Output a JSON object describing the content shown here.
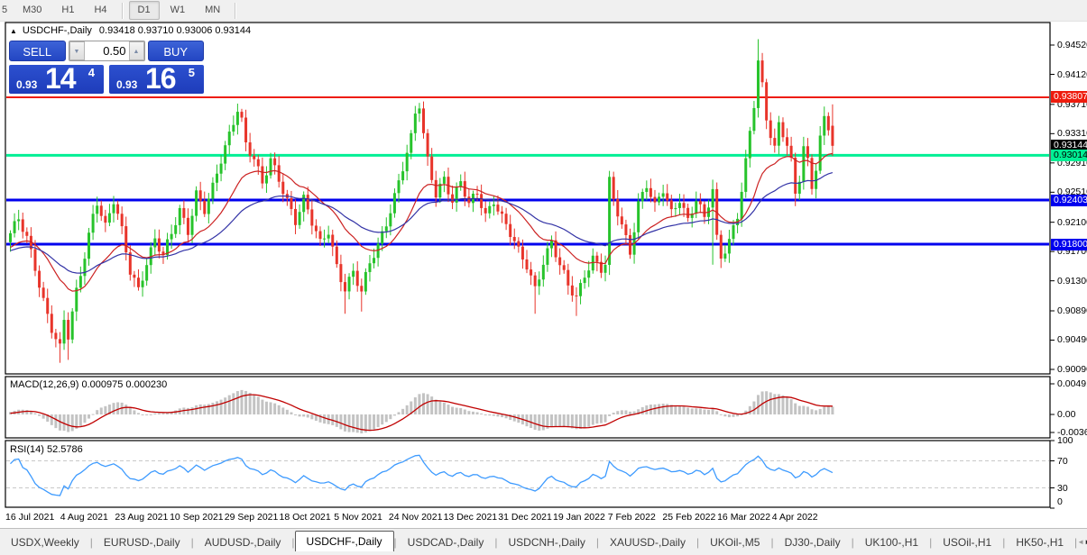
{
  "toolbar": {
    "timeframes": [
      "5",
      "M30",
      "H1",
      "H4",
      "D1",
      "W1",
      "MN"
    ],
    "active": "D1"
  },
  "chart_header": {
    "collapse_icon": "▲",
    "symbol": "USDCHF-,Daily",
    "ohlc": "0.93418 0.93710 0.93006 0.93144"
  },
  "trade_panel": {
    "sell_label": "SELL",
    "buy_label": "BUY",
    "volume": "0.50",
    "volume_down_icon": "▼",
    "volume_up_icon": "▲",
    "sell_quote": {
      "prefix": "0.93",
      "big": "14",
      "sup": "4"
    },
    "buy_quote": {
      "prefix": "0.93",
      "big": "16",
      "sup": "5"
    }
  },
  "price_axis": {
    "ticks": [
      "0.94520",
      "0.94120",
      "0.93710",
      "0.93310",
      "0.92910",
      "0.92510",
      "0.92100",
      "0.91700",
      "0.91300",
      "0.90890",
      "0.90490",
      "0.90090"
    ],
    "badges": [
      {
        "text": "0.93807",
        "value": 0.93807,
        "bg": "#ee1c0e",
        "fg": "#ffffff"
      },
      {
        "text": "0.93144",
        "value": 0.93144,
        "bg": "#000000",
        "fg": "#ffffff"
      },
      {
        "text": "0.93014",
        "value": 0.93014,
        "bg": "#00ef94",
        "fg": "#000000"
      },
      {
        "text": "0.92403",
        "value": 0.92403,
        "bg": "#0000ee",
        "fg": "#ffffff"
      },
      {
        "text": "0.91800",
        "value": 0.918,
        "bg": "#0000ee",
        "fg": "#ffffff"
      }
    ]
  },
  "date_axis": {
    "labels": [
      "16 Jul 2021",
      "4 Aug 2021",
      "23 Aug 2021",
      "10 Sep 2021",
      "29 Sep 2021",
      "18 Oct 2021",
      "5 Nov 2021",
      "24 Nov 2021",
      "13 Dec 2021",
      "31 Dec 2021",
      "19 Jan 2022",
      "7 Feb 2022",
      "25 Feb 2022",
      "16 Mar 2022",
      "4 Apr 2022"
    ]
  },
  "tabs": {
    "items": [
      "USDX,Weekly",
      "EURUSD-,Daily",
      "AUDUSD-,Daily",
      "USDCHF-,Daily",
      "USDCAD-,Daily",
      "USDCNH-,Daily",
      "XAUUSD-,Daily",
      "UKOil-,M5",
      "DJ30-,Daily",
      "UK100-,H1",
      "USOil-,H1",
      "HK50-,H1"
    ],
    "active": "USDCHF-,Daily",
    "scroll_left": "◄",
    "scroll_right": "►"
  },
  "indicators": {
    "macd": {
      "label": "MACD(12,26,9) 0.000975 0.000230",
      "axis_ticks": [
        "0.004913",
        "0.00",
        "-0.00361"
      ]
    },
    "rsi": {
      "label": "RSI(14) 52.5786",
      "axis_ticks": [
        "100",
        "70",
        "30",
        "0"
      ],
      "levels": [
        70,
        30
      ],
      "current": 52.5786
    }
  },
  "chart_data": {
    "type": "candlestick",
    "symbol": "USDCHF-",
    "timeframe": "Daily",
    "current_candle": {
      "open": 0.93418,
      "high": 0.9371,
      "low": 0.93006,
      "close": 0.93144
    },
    "scale": {
      "top_tick": 0.9452,
      "bottom_tick": 0.9009
    },
    "hlines": [
      {
        "price": 0.93807,
        "color": "#ee1c0e",
        "width": 2
      },
      {
        "price": 0.93014,
        "color": "#00ef94",
        "width": 3
      },
      {
        "price": 0.92403,
        "color": "#0000ee",
        "width": 3
      },
      {
        "price": 0.918,
        "color": "#0000ee",
        "width": 3
      }
    ],
    "colors": {
      "bull": "#27c32b",
      "bear": "#e8342a",
      "ma_fast": "#cc2222",
      "ma_slow": "#3333a6",
      "macd_hist": "#c3c3c3",
      "macd_signal": "#c00000",
      "rsi_line": "#3e9bff",
      "level_dash": "#c8c8c8"
    },
    "ma_periods": {
      "fast": 20,
      "slow": 45
    },
    "macd_params": {
      "fast": 12,
      "slow": 26,
      "signal": 9
    },
    "rsi_period": 14,
    "synth": {
      "warmup": 30,
      "count": 200,
      "noise": [
        [
          1.7,
          0.0006
        ],
        [
          0.53,
          0.0004
        ]
      ],
      "wick": [
        2.3,
        0.0004,
        0.0009
      ]
    },
    "waypoints": [
      [
        -30,
        0.9165
      ],
      [
        -20,
        0.9182
      ],
      [
        -10,
        0.916
      ],
      [
        -3,
        0.9182
      ],
      [
        0,
        0.9195
      ],
      [
        2,
        0.9212
      ],
      [
        4,
        0.9185
      ],
      [
        6,
        0.9148
      ],
      [
        8,
        0.9105
      ],
      [
        10,
        0.9068
      ],
      [
        12,
        0.9038
      ],
      [
        13,
        0.9075
      ],
      [
        14,
        0.9052
      ],
      [
        16,
        0.9112
      ],
      [
        18,
        0.9165
      ],
      [
        20,
        0.9222
      ],
      [
        21,
        0.9242
      ],
      [
        23,
        0.9205
      ],
      [
        25,
        0.9238
      ],
      [
        27,
        0.9195
      ],
      [
        29,
        0.9142
      ],
      [
        31,
        0.912
      ],
      [
        33,
        0.9158
      ],
      [
        35,
        0.9188
      ],
      [
        37,
        0.9162
      ],
      [
        39,
        0.9192
      ],
      [
        41,
        0.9225
      ],
      [
        43,
        0.92
      ],
      [
        45,
        0.9252
      ],
      [
        47,
        0.9228
      ],
      [
        49,
        0.9255
      ],
      [
        51,
        0.9292
      ],
      [
        53,
        0.9328
      ],
      [
        55,
        0.9368
      ],
      [
        56,
        0.9352
      ],
      [
        57,
        0.932
      ],
      [
        59,
        0.9298
      ],
      [
        61,
        0.926
      ],
      [
        63,
        0.9292
      ],
      [
        65,
        0.9268
      ],
      [
        67,
        0.9242
      ],
      [
        69,
        0.9215
      ],
      [
        71,
        0.9242
      ],
      [
        73,
        0.9208
      ],
      [
        75,
        0.9178
      ],
      [
        77,
        0.9198
      ],
      [
        79,
        0.9152
      ],
      [
        81,
        0.9122
      ],
      [
        83,
        0.9142
      ],
      [
        85,
        0.9112
      ],
      [
        87,
        0.9152
      ],
      [
        89,
        0.9178
      ],
      [
        91,
        0.9212
      ],
      [
        93,
        0.9248
      ],
      [
        95,
        0.9285
      ],
      [
        97,
        0.9322
      ],
      [
        98,
        0.9355
      ],
      [
        99,
        0.9368
      ],
      [
        100,
        0.9328
      ],
      [
        101,
        0.9295
      ],
      [
        103,
        0.9252
      ],
      [
        105,
        0.9272
      ],
      [
        107,
        0.9238
      ],
      [
        109,
        0.9262
      ],
      [
        111,
        0.9232
      ],
      [
        113,
        0.9252
      ],
      [
        115,
        0.9222
      ],
      [
        117,
        0.9242
      ],
      [
        119,
        0.9215
      ],
      [
        121,
        0.9192
      ],
      [
        123,
        0.9168
      ],
      [
        125,
        0.9152
      ],
      [
        127,
        0.9122
      ],
      [
        129,
        0.9158
      ],
      [
        131,
        0.9182
      ],
      [
        133,
        0.9148
      ],
      [
        135,
        0.9122
      ],
      [
        137,
        0.9108
      ],
      [
        139,
        0.9142
      ],
      [
        141,
        0.9162
      ],
      [
        143,
        0.9145
      ],
      [
        144,
        0.915
      ],
      [
        145,
        0.9262
      ],
      [
        146,
        0.9238
      ],
      [
        148,
        0.9205
      ],
      [
        150,
        0.9172
      ],
      [
        152,
        0.9238
      ],
      [
        154,
        0.9262
      ],
      [
        156,
        0.9228
      ],
      [
        158,
        0.9252
      ],
      [
        160,
        0.9222
      ],
      [
        162,
        0.9245
      ],
      [
        164,
        0.9215
      ],
      [
        166,
        0.9242
      ],
      [
        168,
        0.9212
      ],
      [
        170,
        0.9252
      ],
      [
        171,
        0.9185
      ],
      [
        172,
        0.9162
      ],
      [
        174,
        0.9188
      ],
      [
        176,
        0.9222
      ],
      [
        178,
        0.9292
      ],
      [
        180,
        0.9368
      ],
      [
        181,
        0.9428
      ],
      [
        182,
        0.9392
      ],
      [
        183,
        0.9348
      ],
      [
        185,
        0.9315
      ],
      [
        186,
        0.9345
      ],
      [
        188,
        0.9322
      ],
      [
        189,
        0.9295
      ],
      [
        190,
        0.9245
      ],
      [
        191,
        0.9268
      ],
      [
        192,
        0.9312
      ],
      [
        193,
        0.9288
      ],
      [
        194,
        0.9252
      ],
      [
        195,
        0.9285
      ],
      [
        196,
        0.9328
      ],
      [
        197,
        0.9352
      ],
      [
        198,
        0.9342
      ],
      [
        199,
        0.9314
      ]
    ],
    "spikes": {
      "12": {
        "low": 0.9018
      },
      "14": {
        "low": 0.9022
      },
      "55": {
        "high": 0.9372
      },
      "81": {
        "low": 0.9085
      },
      "85": {
        "low": 0.9088
      },
      "99": {
        "high": 0.9373
      },
      "127": {
        "low": 0.9085
      },
      "137": {
        "low": 0.9082
      },
      "145": {
        "low": 0.9138
      },
      "170": {
        "low": 0.9152
      },
      "181": {
        "high": 0.946
      },
      "190": {
        "low": 0.9232
      },
      "197": {
        "high": 0.9368
      },
      "199": {
        "ohlc": [
          0.93418,
          0.9371,
          0.93006,
          0.93144
        ]
      }
    }
  }
}
